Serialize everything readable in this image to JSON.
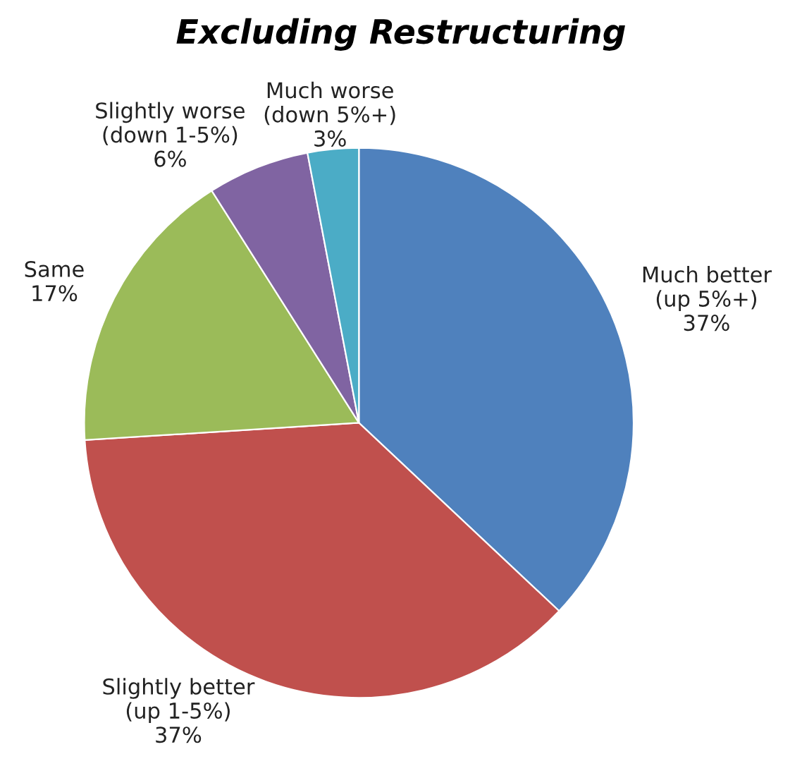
{
  "chart_data": {
    "type": "pie",
    "title": "Excluding Restructuring",
    "categories": [
      "Much better\n(up 5%+)",
      "Slightly better\n(up 1-5%)",
      "Same",
      "Slightly worse\n(down 1-5%)",
      "Much worse\n(down 5%+)"
    ],
    "values": [
      37,
      37,
      17,
      6,
      3
    ],
    "value_labels": [
      "37%",
      "37%",
      "17%",
      "6%",
      "3%"
    ],
    "colors": [
      "#4f81bd",
      "#c0504d",
      "#9bbb59",
      "#8064a2",
      "#4bacc6"
    ],
    "legend": false
  }
}
